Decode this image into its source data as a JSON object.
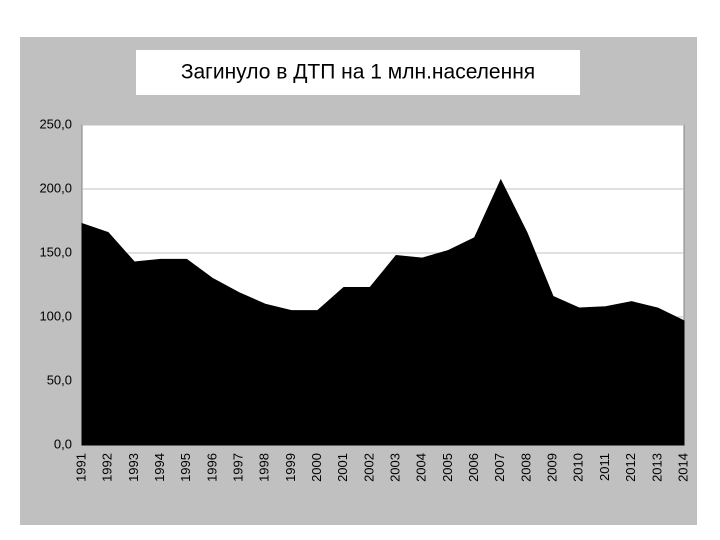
{
  "chart_data": {
    "type": "area",
    "title": "Загинуло в ДТП на 1 млн.населення",
    "categories": [
      "1991",
      "1992",
      "1993",
      "1994",
      "1995",
      "1996",
      "1997",
      "1998",
      "1999",
      "2000",
      "2001",
      "2002",
      "2003",
      "2004",
      "2005",
      "2006",
      "2007",
      "2008",
      "2009",
      "2010",
      "2011",
      "2012",
      "2013",
      "2014"
    ],
    "values": [
      173,
      166,
      143,
      145,
      145,
      130,
      119,
      110,
      105,
      105,
      123,
      123,
      148,
      146,
      152,
      162,
      207,
      166,
      116,
      107,
      108,
      112,
      107,
      97
    ],
    "color": "#000000",
    "ylim": [
      0,
      250
    ],
    "yticks": [
      {
        "value": 0,
        "label": "0,0"
      },
      {
        "value": 50,
        "label": "50,0"
      },
      {
        "value": 100,
        "label": "100,0"
      },
      {
        "value": 150,
        "label": "150,0"
      },
      {
        "value": 200,
        "label": "200,0"
      },
      {
        "value": 250,
        "label": "250,0"
      }
    ],
    "grid": true
  }
}
